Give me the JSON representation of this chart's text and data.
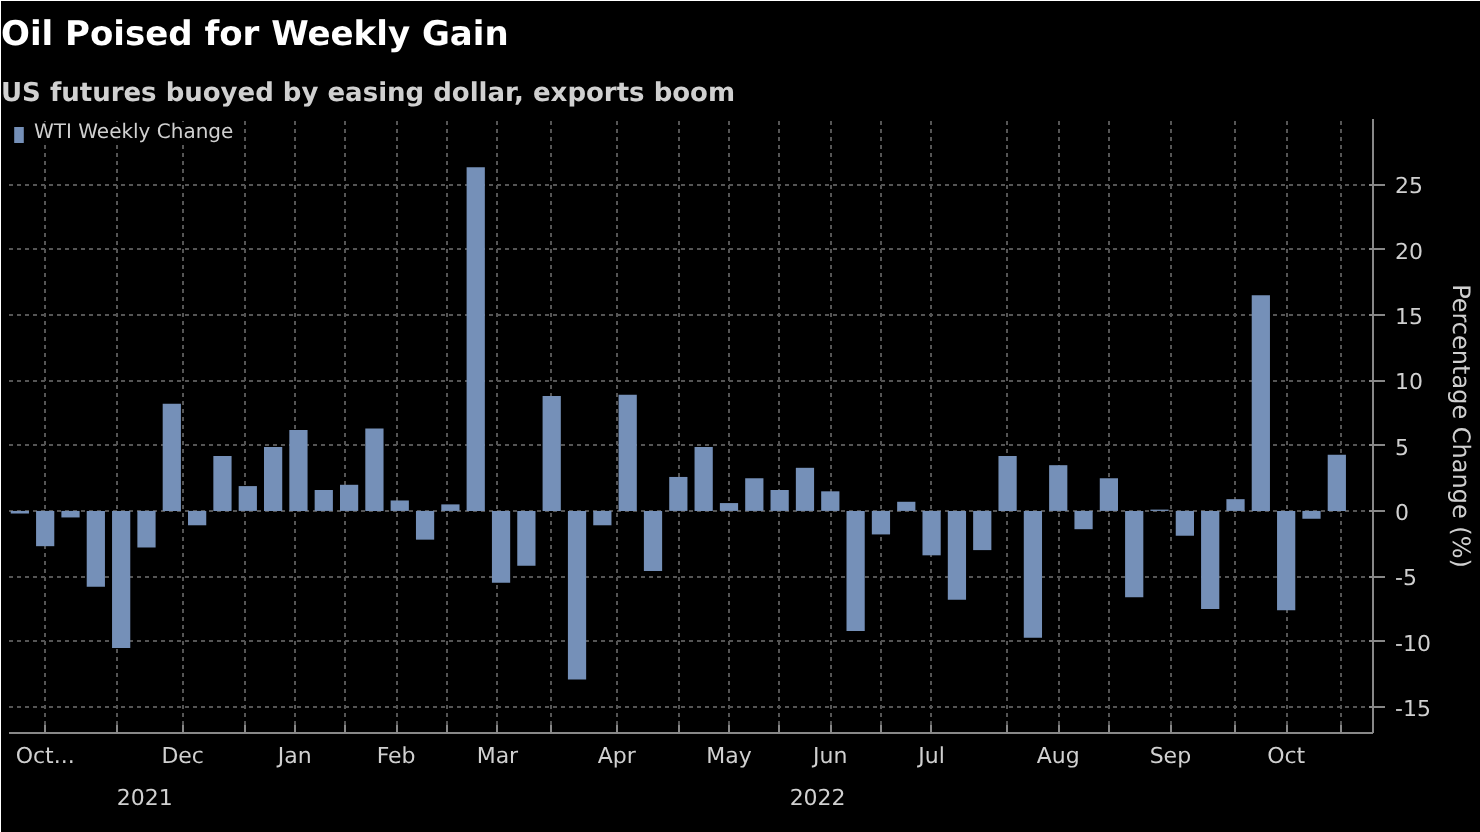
{
  "chart_data": {
    "type": "bar",
    "title": "Oil Poised for Weekly Gain",
    "subtitle": "US futures buoyed by easing dollar, exports boom",
    "ylabel": "Percentage Change (%)",
    "x": [
      "2021-10-22",
      "2021-10-29",
      "2021-11-05",
      "2021-11-12",
      "2021-11-19",
      "2021-11-26",
      "2021-12-03",
      "2021-12-10",
      "2021-12-17",
      "2021-12-24",
      "2021-12-31",
      "2022-01-07",
      "2022-01-14",
      "2022-01-21",
      "2022-01-28",
      "2022-02-04",
      "2022-02-11",
      "2022-02-18",
      "2022-02-25",
      "2022-03-04",
      "2022-03-11",
      "2022-03-18",
      "2022-03-25",
      "2022-04-01",
      "2022-04-08",
      "2022-04-15",
      "2022-04-22",
      "2022-04-29",
      "2022-05-06",
      "2022-05-13",
      "2022-05-20",
      "2022-05-27",
      "2022-06-03",
      "2022-06-10",
      "2022-06-17",
      "2022-06-24",
      "2022-07-01",
      "2022-07-08",
      "2022-07-15",
      "2022-07-22",
      "2022-07-29",
      "2022-08-05",
      "2022-08-12",
      "2022-08-19",
      "2022-08-26",
      "2022-09-02",
      "2022-09-09",
      "2022-09-16",
      "2022-09-23",
      "2022-09-30",
      "2022-10-07",
      "2022-10-14",
      "2022-10-21"
    ],
    "series": [
      {
        "name": "WTI Weekly Change",
        "color": "#7590b8",
        "values": [
          -0.2,
          -2.7,
          -0.5,
          -5.8,
          -10.5,
          -2.8,
          8.2,
          -1.1,
          4.2,
          1.9,
          4.9,
          6.2,
          1.6,
          2.0,
          6.3,
          0.8,
          -2.2,
          0.5,
          26.3,
          -5.5,
          -4.2,
          8.8,
          -12.9,
          -1.1,
          8.9,
          -4.6,
          2.6,
          4.9,
          0.6,
          2.5,
          1.6,
          3.3,
          1.5,
          -9.2,
          -1.8,
          0.7,
          -3.4,
          -6.8,
          -3.0,
          4.2,
          -9.7,
          3.5,
          -1.4,
          2.5,
          -6.6,
          0.1,
          -1.9,
          -7.5,
          0.9,
          16.5,
          -7.6,
          -0.6,
          4.3
        ]
      }
    ],
    "xlim": [
      "2021-10-19",
      "2022-10-31"
    ],
    "xticks": [
      {
        "value": "2021-10-29",
        "label": "Oct..."
      },
      {
        "value": "2021-11-18",
        "label": null
      },
      {
        "value": "2021-12-06",
        "label": "Dec"
      },
      {
        "value": "2021-12-23",
        "label": null
      },
      {
        "value": "2022-01-06",
        "label": "Jan"
      },
      {
        "value": "2022-01-20",
        "label": null
      },
      {
        "value": "2022-02-03",
        "label": "Feb"
      },
      {
        "value": "2022-02-17",
        "label": null
      },
      {
        "value": "2022-03-03",
        "label": "Mar"
      },
      {
        "value": "2022-03-18",
        "label": null
      },
      {
        "value": "2022-04-05",
        "label": "Apr"
      },
      {
        "value": "2022-04-22",
        "label": null
      },
      {
        "value": "2022-05-06",
        "label": "May"
      },
      {
        "value": "2022-05-20",
        "label": null
      },
      {
        "value": "2022-06-03",
        "label": "Jun"
      },
      {
        "value": "2022-06-17",
        "label": null
      },
      {
        "value": "2022-07-01",
        "label": "Jul"
      },
      {
        "value": "2022-07-22",
        "label": null
      },
      {
        "value": "2022-08-05",
        "label": "Aug"
      },
      {
        "value": "2022-08-19",
        "label": null
      },
      {
        "value": "2022-09-05",
        "label": "Sep"
      },
      {
        "value": "2022-09-23",
        "label": null
      },
      {
        "value": "2022-10-07",
        "label": "Oct"
      },
      {
        "value": "2022-10-22",
        "label": null
      }
    ],
    "ylim": [
      -17,
      30
    ],
    "yticks": [
      -15,
      -10,
      -5,
      0,
      5,
      10,
      15,
      20,
      25
    ],
    "annotations": [
      "2021",
      "2022"
    ],
    "grid": true,
    "legend": "top left"
  }
}
